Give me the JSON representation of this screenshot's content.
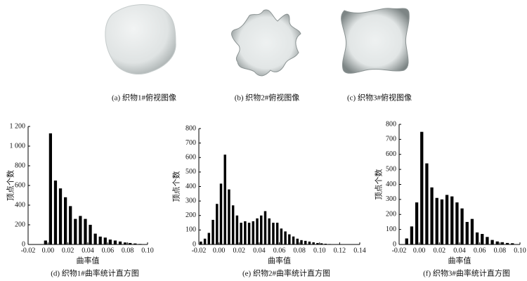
{
  "images": [
    {
      "caption": "(a) 织物1#俯视图像"
    },
    {
      "caption": "(b) 织物2#俯视图像"
    },
    {
      "caption": "(c) 织物3#俯视图像"
    }
  ],
  "chart_data": [
    {
      "type": "histogram",
      "caption": "(d) 织物1#曲率统计直方图",
      "x_label": "曲率值",
      "y_label": "顶点个数",
      "color": "#000000",
      "bins": [
        -0.005,
        0,
        0.005,
        0.01,
        0.015,
        0.02,
        0.025,
        0.03,
        0.035,
        0.04,
        0.045,
        0.05,
        0.055,
        0.06,
        0.065,
        0.07,
        0.075,
        0.08,
        0.085,
        0.09,
        0.095,
        0.1
      ],
      "values": [
        40,
        1130,
        650,
        570,
        480,
        390,
        260,
        290,
        260,
        200,
        110,
        80,
        70,
        50,
        40,
        30,
        20,
        15,
        10,
        5,
        3
      ],
      "xlim": [
        -0.02,
        0.1
      ],
      "xticks": [
        -0.02,
        {
          "value": 0,
          "label": "0.00"
        },
        0.02,
        0.04,
        0.06,
        0.08,
        {
          "value": 0.1,
          "label": "0.10"
        }
      ],
      "ylim": [
        0,
        1200
      ],
      "yticks": [
        0,
        200,
        400,
        600,
        800,
        {
          "value": 1000,
          "label": "1 000"
        },
        {
          "value": 1200,
          "label": "1 200"
        }
      ]
    },
    {
      "type": "histogram",
      "caption": "(e) 织物2#曲率统计直方图",
      "x_label": "曲率值",
      "y_label": "顶点个数",
      "color": "#000000",
      "bins": [
        -0.02,
        -0.016,
        -0.012,
        -0.008,
        -0.004,
        0,
        0.004,
        0.008,
        0.012,
        0.016,
        0.02,
        0.024,
        0.028,
        0.032,
        0.036,
        0.04,
        0.044,
        0.048,
        0.052,
        0.056,
        0.06,
        0.064,
        0.068,
        0.072,
        0.076,
        0.08,
        0.084,
        0.088,
        0.092,
        0.096,
        0.1,
        0.104,
        0.108,
        0.112,
        0.116,
        0.12
      ],
      "values": [
        20,
        40,
        80,
        170,
        280,
        420,
        620,
        380,
        270,
        200,
        150,
        160,
        150,
        160,
        180,
        200,
        230,
        180,
        150,
        150,
        110,
        90,
        70,
        55,
        40,
        30,
        25,
        20,
        15,
        10,
        8,
        5,
        3,
        2,
        1
      ],
      "xlim": [
        -0.02,
        0.14
      ],
      "xticks": [
        -0.02,
        {
          "value": 0,
          "label": "0.00"
        },
        0.02,
        0.04,
        0.06,
        0.08,
        {
          "value": 0.1,
          "label": "0.10"
        },
        0.12,
        0.14
      ],
      "ylim": [
        0,
        800
      ],
      "yticks": [
        0,
        100,
        200,
        300,
        400,
        500,
        600,
        700,
        800
      ]
    },
    {
      "type": "histogram",
      "caption": "(f) 织物3#曲率统计直方图",
      "x_label": "曲率值",
      "y_label": "顶点个数",
      "color": "#000000",
      "bins": [
        -0.015,
        -0.01,
        -0.005,
        0,
        0.005,
        0.01,
        0.015,
        0.02,
        0.025,
        0.03,
        0.035,
        0.04,
        0.045,
        0.05,
        0.055,
        0.06,
        0.065,
        0.07,
        0.075,
        0.08,
        0.085,
        0.09,
        0.095
      ],
      "values": [
        40,
        120,
        280,
        750,
        540,
        380,
        310,
        300,
        330,
        320,
        280,
        240,
        150,
        170,
        80,
        70,
        50,
        30,
        20,
        15,
        10,
        8
      ],
      "xlim": [
        -0.02,
        0.1
      ],
      "xticks": [
        -0.02,
        {
          "value": 0,
          "label": "0.00"
        },
        0.02,
        0.04,
        0.06,
        0.08,
        {
          "value": 0.1,
          "label": "0.10"
        }
      ],
      "ylim": [
        0,
        800
      ],
      "yticks": [
        0,
        100,
        200,
        300,
        400,
        500,
        600,
        700,
        800
      ]
    }
  ]
}
